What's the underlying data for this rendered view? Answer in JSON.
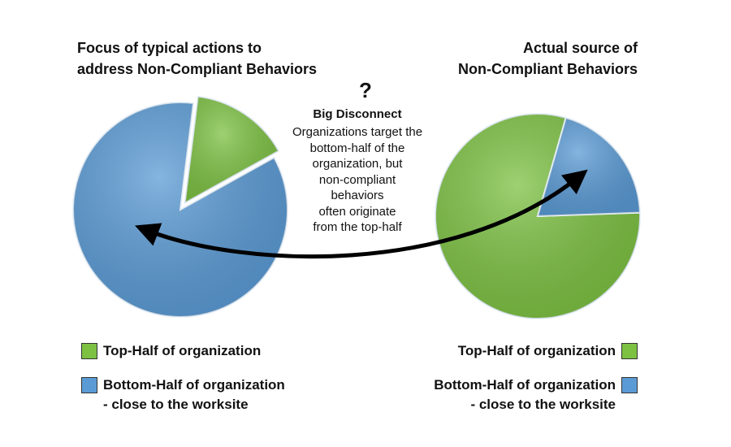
{
  "chart_data": [
    {
      "type": "pie",
      "title": "Focus of typical actions to\naddress Non-Compliant Behaviors",
      "categories": [
        "Top-Half of organization",
        "Bottom-Half of organization\n- close to the worksite"
      ],
      "values": [
        15,
        85
      ],
      "colors": [
        "#7dc143",
        "#5b9bd5"
      ],
      "legend": "bottom-left"
    },
    {
      "type": "pie",
      "title": "Actual source of\nNon-Compliant Behaviors",
      "categories": [
        "Top-Half of organization",
        "Bottom-Half of organization\n- close to the worksite"
      ],
      "values": [
        80,
        20
      ],
      "colors": [
        "#7dc143",
        "#5b9bd5"
      ],
      "legend": "bottom-right"
    }
  ],
  "annotation": {
    "mark": "?",
    "title": "Big Disconnect",
    "text": "Organizations target the\nbottom-half of the\norganization, but\nnon-compliant\nbehaviors\noften originate\nfrom the top-half"
  }
}
